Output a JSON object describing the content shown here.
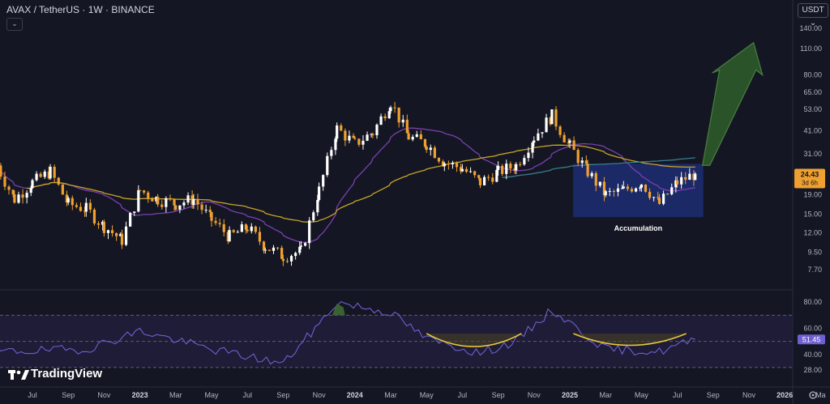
{
  "header": {
    "title": "AVAX / TetherUS · 1W · BINANCE",
    "currency_button": "USDT",
    "collapse_icon": "chevron-down-icon"
  },
  "branding": {
    "logo": "tradingview-logo",
    "text": "TradingView"
  },
  "colors": {
    "background": "#141723",
    "up": "#ffffff",
    "down": "#f0a030",
    "ma_purple": "#7b3fb0",
    "ma_yellow": "#c9a227",
    "ma_teal": "#3a7d8c",
    "rsi_line": "#6f5fd0",
    "accent_green": "#3e6a35",
    "box_blue": "#1b2a6b"
  },
  "annotations": {
    "box_label": "Accumulation"
  },
  "chart_data": [
    {
      "type": "candlestick",
      "title": "AVAX / TetherUS · 1W · BINANCE",
      "y_scale": "log",
      "ylim": [
        6.8,
        150
      ],
      "y_ticks": [
        "140.00",
        "110.00",
        "80.00",
        "65.00",
        "53.00",
        "41.00",
        "31.00",
        "24.43",
        "19.00",
        "15.00",
        "12.00",
        "9.50",
        "7.70"
      ],
      "price_label": {
        "value": "24.43",
        "countdown": "3d 6h"
      },
      "x_ticks": [
        "Jul",
        "Sep",
        "Nov",
        "2023",
        "Mar",
        "May",
        "Jul",
        "Sep",
        "Nov",
        "2024",
        "Mar",
        "May",
        "Jul",
        "Sep",
        "Nov",
        "2025",
        "Mar",
        "May",
        "Jul",
        "Sep",
        "Nov",
        "2026",
        "Ma"
      ],
      "approx_close_path": [
        {
          "date": "2022-05",
          "close": 27
        },
        {
          "date": "2022-06",
          "close": 18
        },
        {
          "date": "2022-07",
          "close": 22
        },
        {
          "date": "2022-08",
          "close": 25
        },
        {
          "date": "2022-09",
          "close": 17
        },
        {
          "date": "2022-10",
          "close": 16
        },
        {
          "date": "2022-11",
          "close": 13
        },
        {
          "date": "2022-12",
          "close": 11
        },
        {
          "date": "2023-01",
          "close": 20
        },
        {
          "date": "2023-02",
          "close": 18
        },
        {
          "date": "2023-03",
          "close": 17
        },
        {
          "date": "2023-04",
          "close": 18
        },
        {
          "date": "2023-05",
          "close": 14
        },
        {
          "date": "2023-06",
          "close": 11.5
        },
        {
          "date": "2023-07",
          "close": 12.8
        },
        {
          "date": "2023-08",
          "close": 10.2
        },
        {
          "date": "2023-09",
          "close": 9.1
        },
        {
          "date": "2023-10",
          "close": 9.6
        },
        {
          "date": "2023-11",
          "close": 20
        },
        {
          "date": "2023-12",
          "close": 42
        },
        {
          "date": "2024-01",
          "close": 35
        },
        {
          "date": "2024-02",
          "close": 40
        },
        {
          "date": "2024-03",
          "close": 58
        },
        {
          "date": "2024-04",
          "close": 38
        },
        {
          "date": "2024-05",
          "close": 35
        },
        {
          "date": "2024-06",
          "close": 28
        },
        {
          "date": "2024-07",
          "close": 26
        },
        {
          "date": "2024-08",
          "close": 22
        },
        {
          "date": "2024-09",
          "close": 25
        },
        {
          "date": "2024-10",
          "close": 27
        },
        {
          "date": "2024-11",
          "close": 38
        },
        {
          "date": "2024-12",
          "close": 49
        },
        {
          "date": "2025-01",
          "close": 34
        },
        {
          "date": "2025-02",
          "close": 25
        },
        {
          "date": "2025-03",
          "close": 19
        },
        {
          "date": "2025-04",
          "close": 20
        },
        {
          "date": "2025-05",
          "close": 22
        },
        {
          "date": "2025-06",
          "close": 17
        },
        {
          "date": "2025-07",
          "close": 22
        },
        {
          "date": "2025-08",
          "close": 24.43
        }
      ],
      "accumulation_box": {
        "date_from": "2025-01",
        "date_to": "2025-08",
        "price_low": 14.5,
        "price_high": 27.5
      },
      "projection_arrow": {
        "direction": "up"
      }
    },
    {
      "type": "line",
      "name": "RSI",
      "ylim": [
        25,
        82
      ],
      "y_ticks": [
        "80.00",
        "60.00",
        "51.45",
        "40.00",
        "28.00"
      ],
      "current_value": "51.45",
      "approx_values": [
        {
          "date": "2022-05",
          "value": 42
        },
        {
          "date": "2022-10",
          "value": 44
        },
        {
          "date": "2023-01",
          "value": 58
        },
        {
          "date": "2023-05",
          "value": 44
        },
        {
          "date": "2023-09",
          "value": 33
        },
        {
          "date": "2023-11",
          "value": 63
        },
        {
          "date": "2023-12",
          "value": 80
        },
        {
          "date": "2024-03",
          "value": 72
        },
        {
          "date": "2024-05",
          "value": 52
        },
        {
          "date": "2024-08",
          "value": 41
        },
        {
          "date": "2024-10",
          "value": 50
        },
        {
          "date": "2024-12",
          "value": 74
        },
        {
          "date": "2025-03",
          "value": 44
        },
        {
          "date": "2025-06",
          "value": 42
        },
        {
          "date": "2025-08",
          "value": 51.45
        }
      ]
    }
  ]
}
